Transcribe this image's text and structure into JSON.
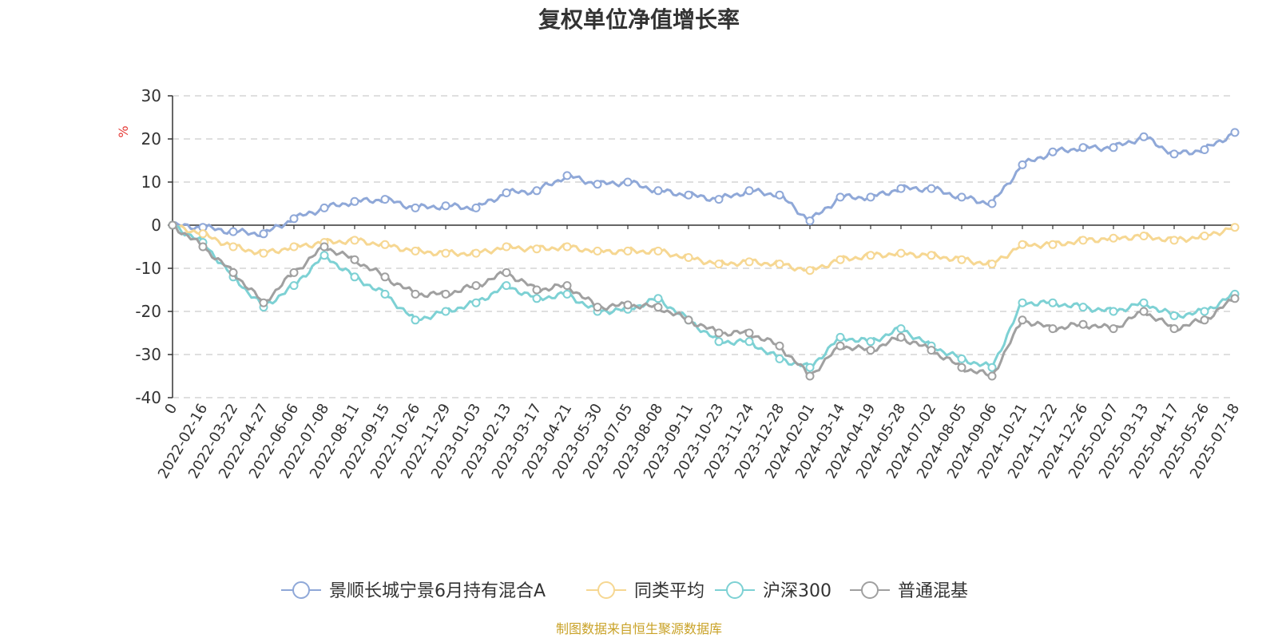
{
  "chart_data": {
    "type": "line",
    "title": "复权单位净值增长率",
    "ylabel": "%",
    "ylim": [
      -40,
      30
    ],
    "yticks": [
      30,
      20,
      10,
      0,
      -10,
      -20,
      -30,
      -40
    ],
    "x_tick_labels": [
      "0",
      "2022-02-16",
      "2022-03-22",
      "2022-04-27",
      "2022-06-06",
      "2022-07-08",
      "2022-08-11",
      "2022-09-15",
      "2022-10-26",
      "2022-11-29",
      "2023-01-03",
      "2023-02-13",
      "2023-03-17",
      "2023-04-21",
      "2023-05-30",
      "2023-07-05",
      "2023-08-08",
      "2023-09-11",
      "2023-10-23",
      "2023-11-24",
      "2023-12-28",
      "2024-02-01",
      "2024-03-14",
      "2024-04-19",
      "2024-05-28",
      "2024-07-02",
      "2024-08-05",
      "2024-09-06",
      "2024-10-21",
      "2024-11-22",
      "2024-12-26",
      "2025-02-07",
      "2025-03-13",
      "2025-04-17",
      "2025-05-26",
      "2025-07-18"
    ],
    "grid": true,
    "legend_position": "bottom",
    "x": [
      "0",
      "2022-02-16",
      "2022-03-22",
      "2022-04-27",
      "2022-06-06",
      "2022-07-08",
      "2022-08-11",
      "2022-09-15",
      "2022-10-26",
      "2022-11-29",
      "2023-01-03",
      "2023-02-13",
      "2023-03-17",
      "2023-04-21",
      "2023-05-30",
      "2023-07-05",
      "2023-08-08",
      "2023-09-11",
      "2023-10-23",
      "2023-11-24",
      "2023-12-28",
      "2024-02-01",
      "2024-03-14",
      "2024-04-19",
      "2024-05-28",
      "2024-07-02",
      "2024-08-05",
      "2024-09-06",
      "2024-10-21",
      "2024-11-22",
      "2024-12-26",
      "2025-02-07",
      "2025-03-13",
      "2025-04-17",
      "2025-05-26",
      "2025-07-18"
    ],
    "series": [
      {
        "name": "景顺长城宁景6月持有混合A",
        "color": "#8fa8d8",
        "values": [
          0,
          -0.5,
          -1.5,
          -2,
          1.5,
          4,
          5.5,
          6,
          4,
          4.5,
          4,
          7.5,
          8,
          11.5,
          9.5,
          10,
          8,
          7,
          6,
          8,
          7,
          1,
          6.5,
          6.5,
          8.5,
          8.5,
          6.5,
          5,
          14,
          17,
          18,
          18,
          20.5,
          16.5,
          17.5,
          21.5
        ]
      },
      {
        "name": "同类平均",
        "color": "#f6d792",
        "values": [
          0,
          -2,
          -5,
          -6.5,
          -5,
          -4,
          -3.5,
          -4.5,
          -6,
          -6.5,
          -6.5,
          -5,
          -5.5,
          -5,
          -6,
          -6,
          -6,
          -7.5,
          -9,
          -8.5,
          -9,
          -10.5,
          -8,
          -7,
          -6.5,
          -7,
          -8,
          -9,
          -4.5,
          -4.5,
          -3.5,
          -3,
          -2.5,
          -3.5,
          -2.5,
          -0.5
        ]
      },
      {
        "name": "沪深300",
        "color": "#7dd1d4",
        "values": [
          0,
          -4,
          -12,
          -19,
          -14,
          -7,
          -12,
          -16,
          -22,
          -20,
          -18,
          -14,
          -17,
          -16,
          -20,
          -19.5,
          -17,
          -22,
          -27,
          -27,
          -31,
          -33,
          -26,
          -27,
          -24,
          -28,
          -31,
          -33,
          -18,
          -18,
          -19,
          -20,
          -18,
          -21,
          -20,
          -16
        ]
      },
      {
        "name": "普通混基",
        "color": "#a0a0a0",
        "values": [
          0,
          -5,
          -11,
          -18,
          -11,
          -5,
          -8,
          -12,
          -16,
          -16,
          -14,
          -11,
          -15,
          -14,
          -19,
          -18.5,
          -19,
          -22,
          -25,
          -25,
          -28,
          -35,
          -28,
          -29,
          -26,
          -29,
          -33,
          -35,
          -22,
          -24,
          -23,
          -24,
          -20,
          -24,
          -22,
          -17
        ]
      }
    ]
  },
  "source_note": "制图数据来自恒生聚源数据库"
}
